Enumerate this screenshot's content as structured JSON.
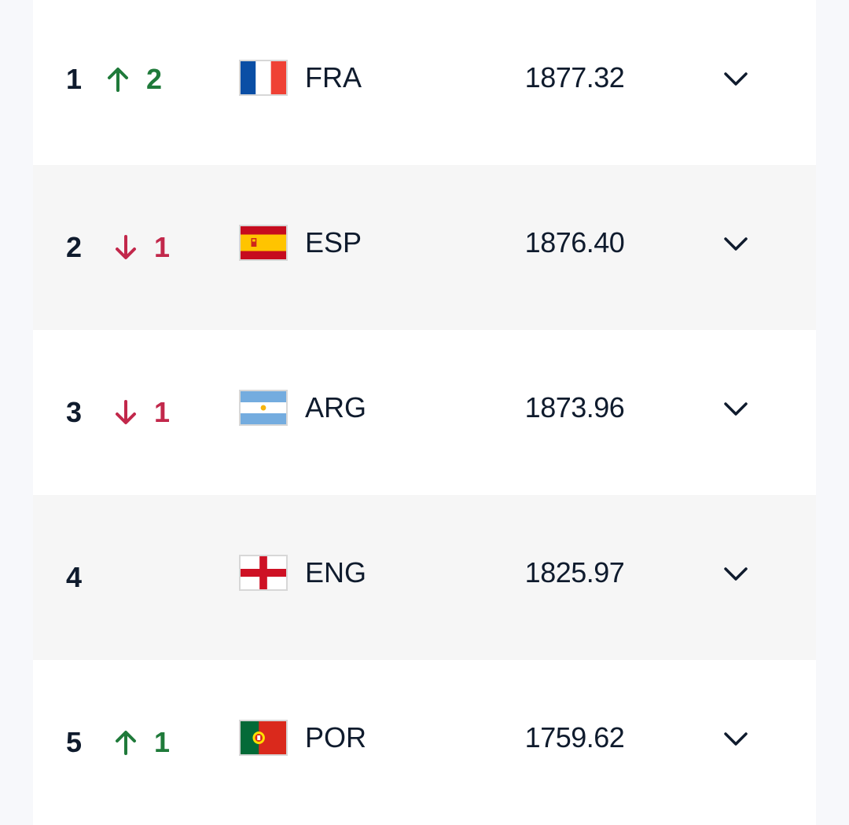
{
  "rankings": [
    {
      "rank": "1",
      "move_dir": "up",
      "move_value": "2",
      "flag": "flag-fra",
      "code": "FRA",
      "points": "1877.32"
    },
    {
      "rank": "2",
      "move_dir": "down",
      "move_value": "1",
      "flag": "flag-esp",
      "code": "ESP",
      "points": "1876.40"
    },
    {
      "rank": "3",
      "move_dir": "down",
      "move_value": "1",
      "flag": "flag-arg",
      "code": "ARG",
      "points": "1873.96"
    },
    {
      "rank": "4",
      "move_dir": "none",
      "move_value": "",
      "flag": "flag-eng",
      "code": "ENG",
      "points": "1825.97"
    },
    {
      "rank": "5",
      "move_dir": "up",
      "move_value": "1",
      "flag": "flag-por",
      "code": "POR",
      "points": "1759.62"
    }
  ],
  "colors": {
    "up": "#1f7a3a",
    "down": "#c2284b",
    "text": "#0f1b2d"
  },
  "icons": {
    "move_up": "arrow-up-icon",
    "move_down": "arrow-down-icon",
    "expand": "chevron-down-icon"
  }
}
